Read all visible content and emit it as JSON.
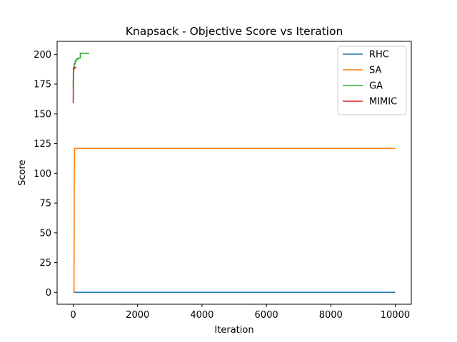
{
  "chart_data": {
    "type": "line",
    "title": "Knapsack - Objective Score vs Iteration",
    "xlabel": "Iteration",
    "ylabel": "Score",
    "xlim": [
      -500,
      10500
    ],
    "ylim": [
      -10,
      211
    ],
    "xticks": [
      0,
      2000,
      4000,
      6000,
      8000,
      10000
    ],
    "yticks": [
      0,
      25,
      50,
      75,
      100,
      125,
      150,
      175,
      200
    ],
    "grid": false,
    "legend": "top-right",
    "series": [
      {
        "name": "RHC",
        "color": "#1f77b4",
        "points": [
          [
            0,
            0
          ],
          [
            10000,
            0
          ]
        ]
      },
      {
        "name": "SA",
        "color": "#ff7f0e",
        "points": [
          [
            0,
            0
          ],
          [
            15,
            0
          ],
          [
            25,
            0
          ],
          [
            30,
            85
          ],
          [
            35,
            105
          ],
          [
            45,
            121
          ],
          [
            10000,
            121
          ]
        ]
      },
      {
        "name": "GA",
        "color": "#2ca02c",
        "points": [
          [
            0,
            171
          ],
          [
            5,
            186
          ],
          [
            10,
            189
          ],
          [
            30,
            189
          ],
          [
            30,
            192
          ],
          [
            60,
            192
          ],
          [
            60,
            194
          ],
          [
            90,
            194
          ],
          [
            90,
            196
          ],
          [
            150,
            196
          ],
          [
            150,
            197
          ],
          [
            220,
            197
          ],
          [
            220,
            201
          ],
          [
            500,
            201
          ]
        ]
      },
      {
        "name": "MIMIC",
        "color": "#d62728",
        "points": [
          [
            0,
            159
          ],
          [
            3,
            172
          ],
          [
            6,
            183
          ],
          [
            10,
            186
          ],
          [
            20,
            188
          ],
          [
            40,
            188
          ],
          [
            40,
            189
          ],
          [
            100,
            189
          ]
        ]
      }
    ]
  }
}
